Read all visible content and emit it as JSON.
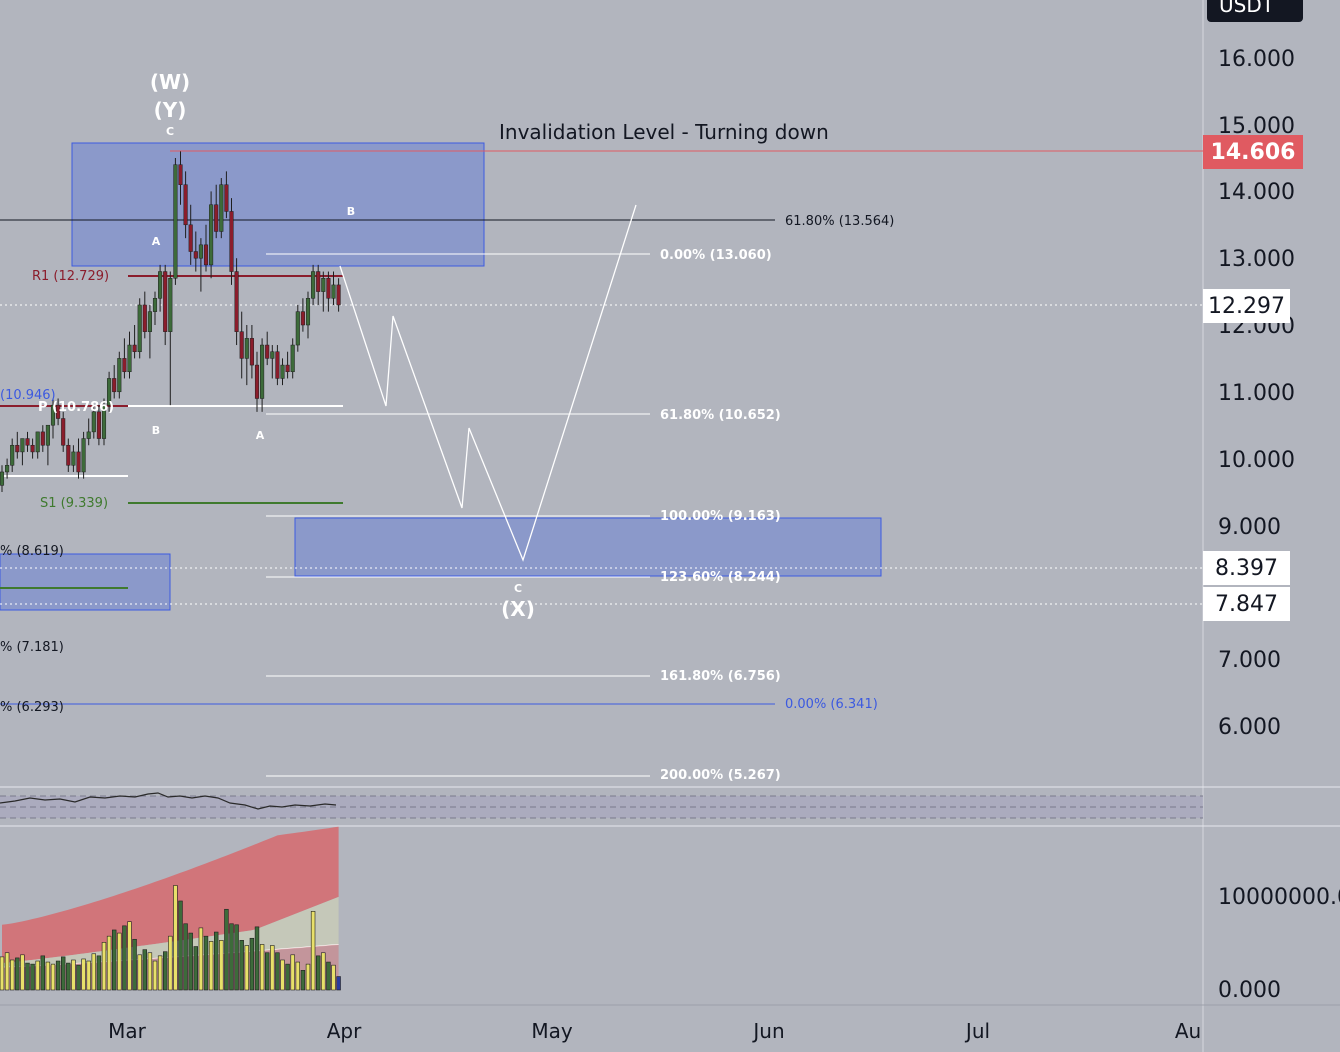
{
  "header": {
    "currency": "USDT"
  },
  "price_axis": {
    "ticks": [
      "16.000",
      "15.000",
      "14.000",
      "13.000",
      "12.000",
      "11.000",
      "10.000",
      "9.000",
      "7.000",
      "6.000"
    ],
    "current_price_tag": "14.606",
    "last_price_tag": "12.297",
    "range_high_tag": "8.397",
    "range_low_tag": "7.847"
  },
  "volume_axis": {
    "ticks": [
      "10000000.0",
      "0.000"
    ]
  },
  "time_axis": {
    "ticks": [
      "Mar",
      "Apr",
      "May",
      "Jun",
      "Jul",
      "Au"
    ]
  },
  "annotations": {
    "invalidation": "Invalidation Level - Turning down",
    "wave_W": "(W)",
    "wave_Y": "(Y)",
    "wave_X": "(X)",
    "label_c_top": "C",
    "label_a_top": "A",
    "label_b_box": "B",
    "label_b_low": "B",
    "label_a_low": "A",
    "label_c_low": "C"
  },
  "fib_labels": {
    "f618_top": "61.80% (13.564)",
    "f0_upper": "0.00% (13.060)",
    "f618_mid": "61.80% (10.652)",
    "f100": "100.00% (9.163)",
    "f1236": "123.60% (8.244)",
    "f1618": "161.80% (6.756)",
    "f0_blue": "0.00% (6.341)",
    "f200": "200.00% (5.267)"
  },
  "pivot_labels": {
    "r1": "R1 (12.729)",
    "p": "P (10.786)",
    "s1": "S1 (9.339)",
    "left_10946": "(10.946)",
    "left_8619": "% (8.619)",
    "left_7181": "% (7.181)",
    "left_6293": "% (6.293)"
  },
  "colors": {
    "background": "#b2b5be",
    "bull_candle": "#3d6b3a",
    "bear_candle": "#8b1d2c",
    "zone_fill": "#8494cc",
    "zone_border": "#3c5ae0",
    "invalidation_line": "#e05a61",
    "resistance_line": "#8b1d2c",
    "support_line": "#3f7a2e",
    "fib_line": "#ffffff",
    "fib_blue_line": "#3c5ae0",
    "volume_band": "#d66a6e"
  },
  "chart_data": {
    "type": "candlestick",
    "y_axis": {
      "ylim": [
        5.0,
        16.8
      ],
      "ticks": [
        16,
        15,
        14,
        13,
        12,
        11,
        10,
        9,
        8,
        7,
        6
      ]
    },
    "x_axis": {
      "ticks": [
        "Mar",
        "Apr",
        "May",
        "Jun",
        "Jul",
        "Au"
      ]
    },
    "candles": [
      [
        9.6,
        9.9,
        9.5,
        9.8
      ],
      [
        9.8,
        10.0,
        9.7,
        9.9
      ],
      [
        9.9,
        10.3,
        9.8,
        10.2
      ],
      [
        10.2,
        10.4,
        10.0,
        10.1
      ],
      [
        10.1,
        10.3,
        9.9,
        10.3
      ],
      [
        10.3,
        10.4,
        10.1,
        10.2
      ],
      [
        10.2,
        10.3,
        10.0,
        10.1
      ],
      [
        10.1,
        10.4,
        10.0,
        10.4
      ],
      [
        10.4,
        10.5,
        10.1,
        10.2
      ],
      [
        10.2,
        10.5,
        9.9,
        10.5
      ],
      [
        10.5,
        10.9,
        10.3,
        10.8
      ],
      [
        10.8,
        10.9,
        10.5,
        10.6
      ],
      [
        10.6,
        10.7,
        10.1,
        10.2
      ],
      [
        10.2,
        10.3,
        9.8,
        9.9
      ],
      [
        9.9,
        10.2,
        9.8,
        10.1
      ],
      [
        10.1,
        10.3,
        9.7,
        9.8
      ],
      [
        9.8,
        10.4,
        9.7,
        10.3
      ],
      [
        10.3,
        10.6,
        10.2,
        10.4
      ],
      [
        10.4,
        10.8,
        10.3,
        10.7
      ],
      [
        10.7,
        10.8,
        10.2,
        10.3
      ],
      [
        10.3,
        10.9,
        10.2,
        10.8
      ],
      [
        10.8,
        11.3,
        10.7,
        11.2
      ],
      [
        11.2,
        11.4,
        10.9,
        11.0
      ],
      [
        11.0,
        11.6,
        10.9,
        11.5
      ],
      [
        11.5,
        11.8,
        11.2,
        11.3
      ],
      [
        11.3,
        11.9,
        11.2,
        11.7
      ],
      [
        11.7,
        12.0,
        11.5,
        11.6
      ],
      [
        11.6,
        12.4,
        11.5,
        12.3
      ],
      [
        12.3,
        12.5,
        11.8,
        11.9
      ],
      [
        11.9,
        12.3,
        11.5,
        12.2
      ],
      [
        12.2,
        12.5,
        12.0,
        12.4
      ],
      [
        12.4,
        12.9,
        12.2,
        12.8
      ],
      [
        12.8,
        12.9,
        11.7,
        11.9
      ],
      [
        11.9,
        12.8,
        10.8,
        12.7
      ],
      [
        12.7,
        14.5,
        12.6,
        14.4
      ],
      [
        14.4,
        14.6,
        13.8,
        14.1
      ],
      [
        14.1,
        14.3,
        13.3,
        13.5
      ],
      [
        13.5,
        13.8,
        12.9,
        13.1
      ],
      [
        13.1,
        13.4,
        12.8,
        13.0
      ],
      [
        13.0,
        13.3,
        12.5,
        13.2
      ],
      [
        13.2,
        13.5,
        12.8,
        12.9
      ],
      [
        12.9,
        14.0,
        12.7,
        13.8
      ],
      [
        13.8,
        14.1,
        13.3,
        13.4
      ],
      [
        13.4,
        14.2,
        13.3,
        14.1
      ],
      [
        14.1,
        14.3,
        13.6,
        13.7
      ],
      [
        13.7,
        13.9,
        12.6,
        12.8
      ],
      [
        12.8,
        13.0,
        11.7,
        11.9
      ],
      [
        11.9,
        12.2,
        11.2,
        11.5
      ],
      [
        11.5,
        12.0,
        11.1,
        11.8
      ],
      [
        11.8,
        12.0,
        11.2,
        11.4
      ],
      [
        11.4,
        11.6,
        10.7,
        10.9
      ],
      [
        10.9,
        11.8,
        10.7,
        11.7
      ],
      [
        11.7,
        11.9,
        11.4,
        11.5
      ],
      [
        11.5,
        11.7,
        11.2,
        11.6
      ],
      [
        11.6,
        11.7,
        11.1,
        11.2
      ],
      [
        11.2,
        11.5,
        11.1,
        11.4
      ],
      [
        11.4,
        11.6,
        11.2,
        11.3
      ],
      [
        11.3,
        11.8,
        11.2,
        11.7
      ],
      [
        11.7,
        12.3,
        11.6,
        12.2
      ],
      [
        12.2,
        12.4,
        11.9,
        12.0
      ],
      [
        12.0,
        12.5,
        11.8,
        12.4
      ],
      [
        12.4,
        12.9,
        12.3,
        12.8
      ],
      [
        12.8,
        12.9,
        12.3,
        12.5
      ],
      [
        12.5,
        12.8,
        12.2,
        12.7
      ],
      [
        12.7,
        12.8,
        12.2,
        12.4
      ],
      [
        12.4,
        12.8,
        12.3,
        12.6
      ],
      [
        12.6,
        12.7,
        12.2,
        12.3
      ]
    ],
    "last_price": 12.297,
    "invalidation_level": 14.606,
    "pivots": {
      "R1": 12.729,
      "P": 10.786,
      "S1": 9.339
    },
    "fib_levels": [
      {
        "label": "61.80%",
        "value": 13.564
      },
      {
        "label": "0.00%",
        "value": 13.06
      },
      {
        "label": "61.80%",
        "value": 10.652
      },
      {
        "label": "100.00%",
        "value": 9.163
      },
      {
        "label": "123.60%",
        "value": 8.244
      },
      {
        "label": "161.80%",
        "value": 6.756
      },
      {
        "label": "0.00%",
        "value": 6.341
      },
      {
        "label": "200.00%",
        "value": 5.267
      }
    ],
    "target_zone": [
      8.397,
      7.847
    ],
    "projection_path": [
      {
        "date": "2023-04-01",
        "value": 12.7
      },
      {
        "date": "2023-04-07",
        "value": 10.8
      },
      {
        "date": "2023-04-10",
        "value": 12.0
      },
      {
        "date": "2023-04-24",
        "value": 9.2
      },
      {
        "date": "2023-04-27",
        "value": 10.5
      },
      {
        "date": "2023-05-02",
        "value": 8.4
      },
      {
        "date": "2023-05-17",
        "value": 13.8
      }
    ],
    "volume": [
      3200000,
      3600000,
      2900000,
      3100000,
      3400000,
      2600000,
      2500000,
      2800000,
      3300000,
      2700000,
      2500000,
      2800000,
      3200000,
      2600000,
      2900000,
      2400000,
      3000000,
      2800000,
      3500000,
      3300000,
      4600000,
      5200000,
      5800000,
      5500000,
      6200000,
      6600000,
      4900000,
      3400000,
      3900000,
      3600000,
      2800000,
      3300000,
      3700000,
      5200000,
      10100000,
      8600000,
      6400000,
      5500000,
      4200000,
      6000000,
      5200000,
      4700000,
      5600000,
      4800000,
      7800000,
      6400000,
      6300000,
      4800000,
      4300000,
      5000000,
      6100000,
      4400000,
      3600000,
      4300000,
      3600000,
      2900000,
      2500000,
      3400000,
      2700000,
      1900000,
      2500000,
      7600000,
      3300000,
      3600000,
      2700000,
      2400000,
      1300000
    ]
  }
}
